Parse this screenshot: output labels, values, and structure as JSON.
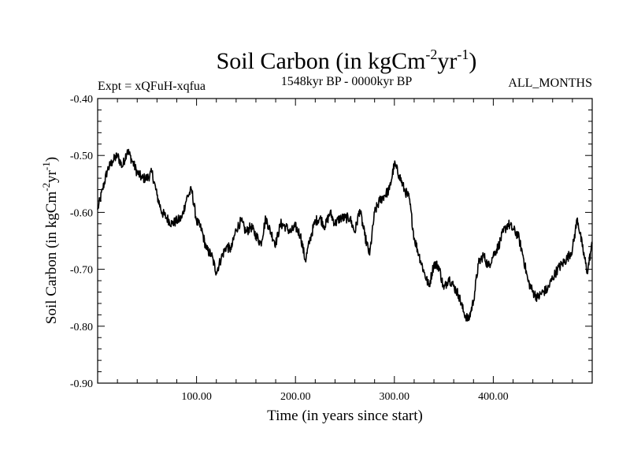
{
  "chart_data": {
    "type": "line",
    "title_main": "Soil Carbon (in kgCm",
    "title_sup1": "-2",
    "title_mid": "yr",
    "title_sup2": "-1",
    "title_end": ")",
    "subtitle_left": "Expt = xQFuH-xqfua",
    "subtitle_center": "1548kyr BP - 0000kyr BP",
    "subtitle_right": "ALL_MONTHS",
    "xlabel": "Time (in years since start)",
    "ylabel_main": "Soil Carbon (in kgCm",
    "ylabel_sup1": "-2",
    "ylabel_mid": "yr",
    "ylabel_sup2": "-1",
    "ylabel_end": ")",
    "xlim": [
      0,
      500
    ],
    "ylim": [
      -0.9,
      -0.4
    ],
    "xticks": [
      100,
      200,
      300,
      400
    ],
    "xtick_labels": [
      "100.00",
      "200.00",
      "300.00",
      "400.00"
    ],
    "yticks": [
      -0.9,
      -0.8,
      -0.7,
      -0.6,
      -0.5,
      -0.4
    ],
    "ytick_labels": [
      "-0.90",
      "-0.80",
      "-0.70",
      "-0.60",
      "-0.50",
      "-0.40"
    ],
    "series": [
      {
        "name": "soil carbon",
        "color": "#000000",
        "x": [
          0,
          5,
          10,
          15,
          20,
          25,
          30,
          35,
          40,
          45,
          50,
          55,
          60,
          65,
          70,
          75,
          80,
          85,
          90,
          95,
          100,
          105,
          110,
          115,
          120,
          125,
          130,
          135,
          140,
          145,
          150,
          155,
          160,
          165,
          170,
          175,
          180,
          185,
          190,
          195,
          200,
          205,
          210,
          215,
          220,
          225,
          230,
          235,
          240,
          245,
          250,
          255,
          260,
          265,
          270,
          275,
          280,
          285,
          290,
          295,
          300,
          305,
          310,
          315,
          320,
          325,
          330,
          335,
          340,
          345,
          350,
          355,
          360,
          365,
          370,
          375,
          380,
          385,
          390,
          395,
          400,
          405,
          410,
          415,
          420,
          425,
          430,
          435,
          440,
          445,
          450,
          455,
          460,
          465,
          470,
          475,
          480,
          485,
          490,
          495,
          500
        ],
        "y": [
          -0.595,
          -0.56,
          -0.525,
          -0.51,
          -0.5,
          -0.52,
          -0.49,
          -0.51,
          -0.53,
          -0.54,
          -0.54,
          -0.53,
          -0.57,
          -0.6,
          -0.61,
          -0.62,
          -0.615,
          -0.61,
          -0.575,
          -0.56,
          -0.615,
          -0.63,
          -0.665,
          -0.675,
          -0.705,
          -0.68,
          -0.66,
          -0.665,
          -0.63,
          -0.615,
          -0.635,
          -0.625,
          -0.64,
          -0.655,
          -0.61,
          -0.635,
          -0.655,
          -0.62,
          -0.625,
          -0.635,
          -0.625,
          -0.64,
          -0.685,
          -0.645,
          -0.615,
          -0.61,
          -0.625,
          -0.6,
          -0.62,
          -0.61,
          -0.61,
          -0.61,
          -0.635,
          -0.595,
          -0.64,
          -0.675,
          -0.6,
          -0.58,
          -0.57,
          -0.56,
          -0.515,
          -0.535,
          -0.56,
          -0.575,
          -0.645,
          -0.675,
          -0.705,
          -0.73,
          -0.69,
          -0.695,
          -0.735,
          -0.715,
          -0.73,
          -0.745,
          -0.775,
          -0.79,
          -0.755,
          -0.69,
          -0.675,
          -0.695,
          -0.675,
          -0.66,
          -0.635,
          -0.62,
          -0.63,
          -0.64,
          -0.675,
          -0.72,
          -0.74,
          -0.75,
          -0.74,
          -0.735,
          -0.715,
          -0.7,
          -0.69,
          -0.68,
          -0.665,
          -0.61,
          -0.66,
          -0.705,
          -0.655
        ]
      }
    ]
  }
}
